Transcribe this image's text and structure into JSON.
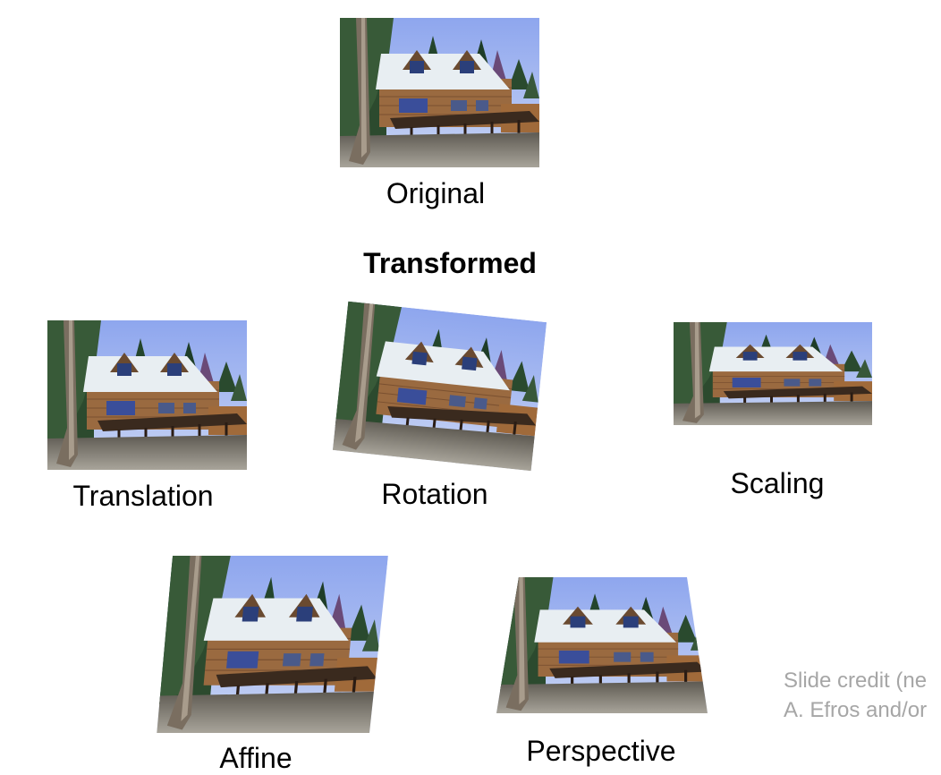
{
  "labels": {
    "original": "Original",
    "heading": "Transformed",
    "translation": "Translation",
    "rotation": "Rotation",
    "scaling": "Scaling",
    "affine": "Affine",
    "perspective": "Perspective"
  },
  "credit": {
    "line1": "Slide credit (ne",
    "line2": "A. Efros and/or"
  },
  "colors": {
    "sky": "#9eb2ee",
    "roof": "#e8eef2",
    "wood": "#9a6a40",
    "deck": "#3a2a1e",
    "trees": "#22402a",
    "ground": "#8a8a84"
  }
}
